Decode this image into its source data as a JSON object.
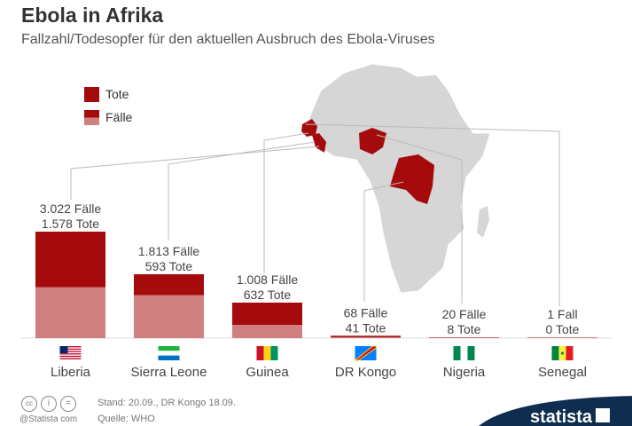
{
  "header": {
    "title": "Ebola in Afrika",
    "subtitle": "Fallzahl/Todesopfer für den aktuellen Ausbruch des Ebola-Viruses"
  },
  "legend": {
    "deaths": "Tote",
    "cases": "Fälle"
  },
  "colors": {
    "deaths": "#a50b0c",
    "cases": "#d08080",
    "map": "#d6d6d6",
    "map_highlight": "#a50b0c",
    "brand": "#0f2d4f"
  },
  "chart_data": {
    "type": "bar",
    "stacked": true,
    "categories": [
      "Liberia",
      "Sierra Leone",
      "Guinea",
      "DR Kongo",
      "Nigeria",
      "Senegal"
    ],
    "series": [
      {
        "name": "Fälle",
        "values": [
          3022,
          1813,
          1008,
          68,
          20,
          1
        ]
      },
      {
        "name": "Tote",
        "values": [
          1578,
          593,
          632,
          41,
          8,
          0
        ]
      }
    ],
    "data_labels": [
      [
        "3.022 Fälle",
        "1.578 Tote"
      ],
      [
        "1.813 Fälle",
        "593 Tote"
      ],
      [
        "1.008 Fälle",
        "632 Tote"
      ],
      [
        "68 Fälle",
        "41 Tote"
      ],
      [
        "20 Fälle",
        "8 Tote"
      ],
      [
        "1 Fall",
        "0 Tote"
      ]
    ],
    "flags": [
      "liberia-flag",
      "sierra-leone-flag",
      "guinea-flag",
      "dr-kongo-flag",
      "nigeria-flag",
      "senegal-flag"
    ],
    "grid": false,
    "legend_position": "top-left"
  },
  "footer": {
    "license_credit": "@Statista com",
    "stand": "Stand: 20.09., DR Kongo 18.09.",
    "source": "Quelle: WHO",
    "brand": "statista"
  }
}
